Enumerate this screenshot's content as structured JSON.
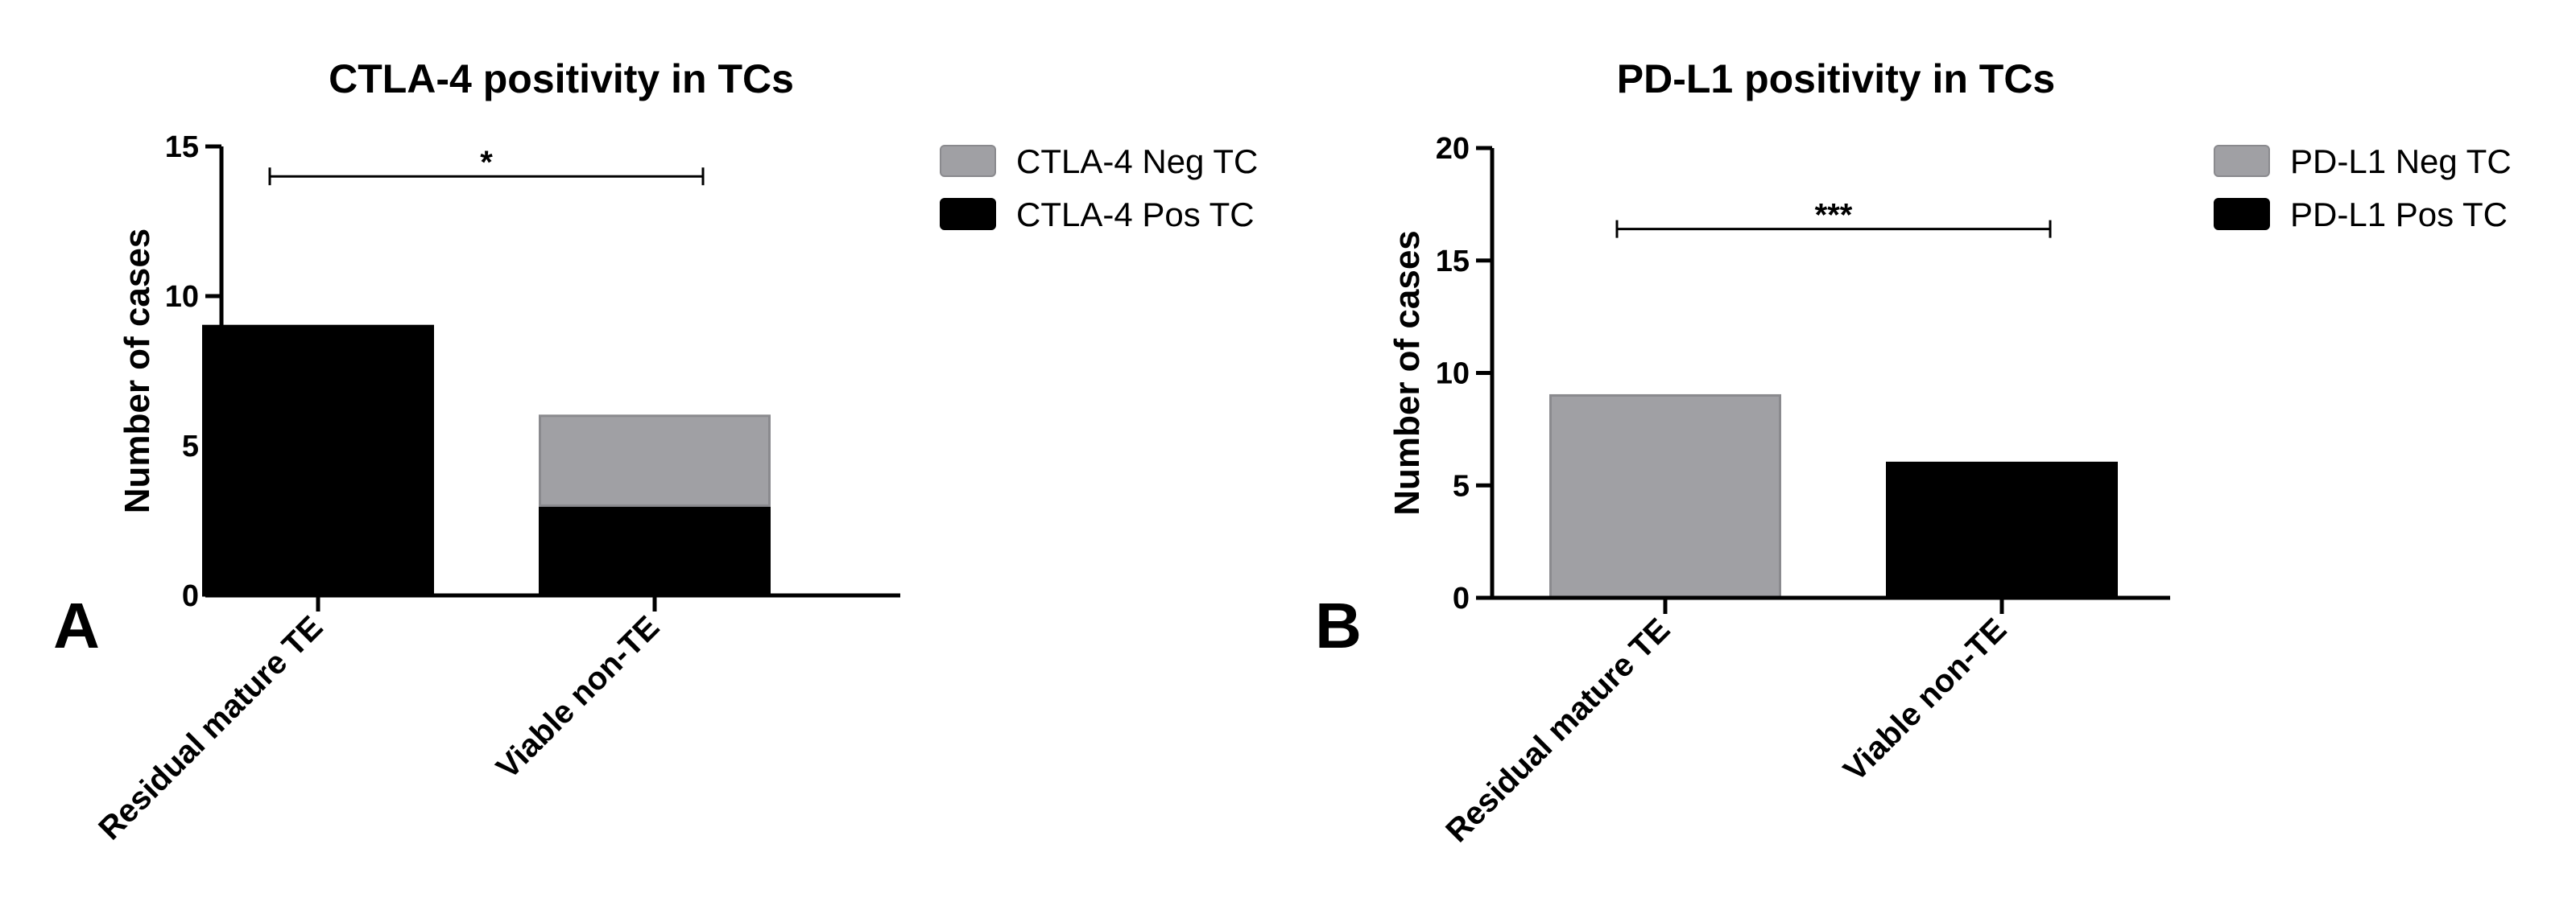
{
  "chart_data": [
    {
      "type": "bar",
      "stacked": true,
      "panel_label": "A",
      "title": "CTLA-4 positivity in TCs",
      "ylabel": "Number of cases",
      "xlabel": "",
      "categories": [
        "Residual mature TE",
        "Viable non-TE"
      ],
      "series": [
        {
          "name": "CTLA-4 Pos TC",
          "values": [
            9,
            3
          ],
          "color": "#000000"
        },
        {
          "name": "CTLA-4 Neg TC",
          "values": [
            0,
            3
          ],
          "color": "#a0a0a4"
        }
      ],
      "legend_order": [
        1,
        0
      ],
      "ylim": [
        0,
        15
      ],
      "yticks": [
        0,
        5,
        10,
        15
      ],
      "significance": {
        "label": "*",
        "from": 0,
        "to": 1,
        "y": 14
      },
      "grid": false,
      "legend_position": "right"
    },
    {
      "type": "bar",
      "stacked": true,
      "panel_label": "B",
      "title": "PD-L1 positivity in TCs",
      "ylabel": "Number of cases",
      "xlabel": "",
      "categories": [
        "Residual mature TE",
        "Viable non-TE"
      ],
      "series": [
        {
          "name": "PD-L1 Pos TC",
          "values": [
            0,
            6
          ],
          "color": "#000000"
        },
        {
          "name": "PD-L1 Neg TC",
          "values": [
            9,
            0
          ],
          "color": "#a0a0a4"
        }
      ],
      "legend_order": [
        1,
        0
      ],
      "ylim": [
        0,
        20
      ],
      "yticks": [
        0,
        5,
        10,
        15,
        20
      ],
      "significance": {
        "label": "***",
        "from": 0,
        "to": 1,
        "y": 16.4
      },
      "grid": false,
      "legend_position": "right"
    }
  ]
}
